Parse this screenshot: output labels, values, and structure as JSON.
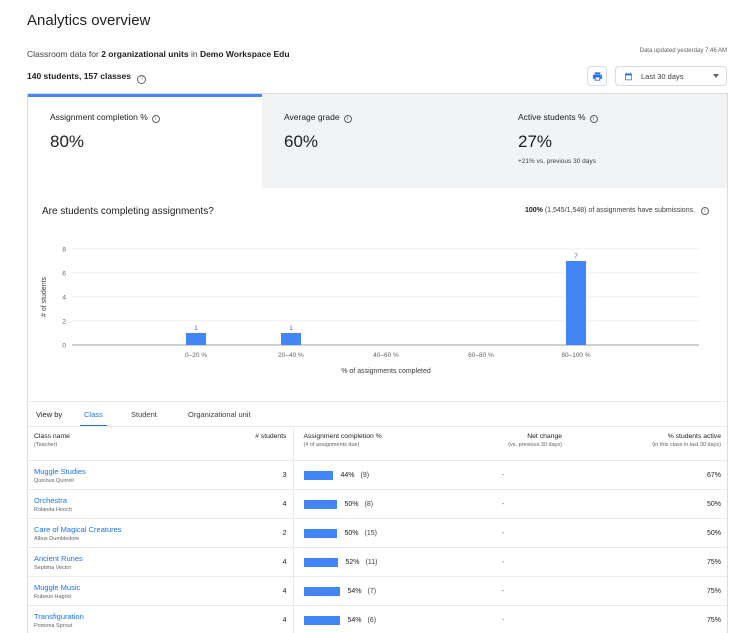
{
  "page": {
    "title": "Analytics overview",
    "subtitle_prefix": "Classroom data for",
    "subtitle_units": "2 organizational units",
    "subtitle_in": "in",
    "subtitle_domain": "Demo Workspace Edu",
    "updated": "Data updated yesterday 7:46 AM",
    "students_count": "140 students,",
    "classes_count": "157 classes",
    "date_range": "Last 30 days"
  },
  "kpis": [
    {
      "label": "Assignment completion %",
      "value": "80%",
      "sub": ""
    },
    {
      "label": "Average grade",
      "value": "60%",
      "sub": ""
    },
    {
      "label": "Active students %",
      "value": "27%",
      "sub": "+21% vs. previous 30 days"
    }
  ],
  "chart_section": {
    "title": "Are students completing assignments?",
    "note_bold": "100%",
    "note_rest": "(1,545/1,548) of assignments have submissions."
  },
  "chart_data": {
    "type": "bar",
    "categories": [
      "0–20 %",
      "20–40 %",
      "40–60 %",
      "60–80 %",
      "80–100 %"
    ],
    "values": [
      1,
      1,
      0,
      0,
      7
    ],
    "value_labels": [
      "1",
      "1",
      "",
      "",
      "7"
    ],
    "xlabel": "% of assignments completed",
    "ylabel": "# of students",
    "yticks": [
      "0",
      "2",
      "4",
      "6",
      "8"
    ],
    "ylim": [
      0,
      8
    ],
    "bar_color": "#4285f4"
  },
  "viewby": {
    "label": "View by",
    "tabs": [
      "Class",
      "Student",
      "Organizational unit"
    ]
  },
  "table": {
    "headers": {
      "class_name": "Class name",
      "class_sub": "(Teacher)",
      "students": "# students",
      "completion": "Assignment completion %",
      "completion_sub": "(# of assignments due)",
      "net": "Net change",
      "net_sub": "(vs. previous 30 days)",
      "active": "% students active",
      "active_sub": "(in this class in last 30 days)"
    },
    "rows": [
      {
        "name": "Muggle Studies",
        "teacher": "Quirinus Quirrell",
        "students": "3",
        "completion": "44%",
        "completion_value": 44,
        "due": "(9)",
        "net": "-",
        "active": "67%"
      },
      {
        "name": "Orchestra",
        "teacher": "Rolanda Hooch",
        "students": "4",
        "completion": "50%",
        "completion_value": 50,
        "due": "(8)",
        "net": "-",
        "active": "50%"
      },
      {
        "name": "Care of Magical Creatures",
        "teacher": "Albus Dumbledore",
        "students": "2",
        "completion": "50%",
        "completion_value": 50,
        "due": "(15)",
        "net": "-",
        "active": "50%"
      },
      {
        "name": "Ancient Runes",
        "teacher": "Septima Vector",
        "students": "4",
        "completion": "52%",
        "completion_value": 52,
        "due": "(11)",
        "net": "-",
        "active": "75%"
      },
      {
        "name": "Muggle Music",
        "teacher": "Rubeus Hagrid",
        "students": "4",
        "completion": "54%",
        "completion_value": 54,
        "due": "(7)",
        "net": "-",
        "active": "75%"
      },
      {
        "name": "Transfiguration",
        "teacher": "Pomona Sprout",
        "students": "4",
        "completion": "54%",
        "completion_value": 54,
        "due": "(6)",
        "net": "-",
        "active": "75%"
      }
    ]
  }
}
